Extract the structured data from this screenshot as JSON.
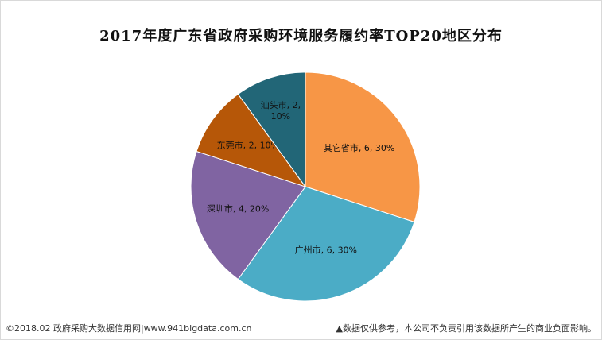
{
  "title": "2017年度广东省政府采购环境服务履约率TOP20地区分布",
  "footer": {
    "left": "©2018.02 政府采购大数据信用网|www.941bigdata.com.cn",
    "right": "▲数据仅供参考，本公司不负责引用该数据所产生的商业负面影响。"
  },
  "chart_data": {
    "type": "pie",
    "title": "2017年度广东省政府采购环境服务履约率TOP20地区分布",
    "slices": [
      {
        "label": "其它省市",
        "value": 6,
        "percent": "30%",
        "color": "#f79646"
      },
      {
        "label": "广州市",
        "value": 6,
        "percent": "30%",
        "color": "#4bacc6"
      },
      {
        "label": "深圳市",
        "value": 4,
        "percent": "20%",
        "color": "#8064a2"
      },
      {
        "label": "东莞市",
        "value": 2,
        "percent": "10%",
        "color": "#b65708"
      },
      {
        "label": "汕头市",
        "value": 2,
        "percent": "10%",
        "color": "#226677"
      }
    ]
  }
}
